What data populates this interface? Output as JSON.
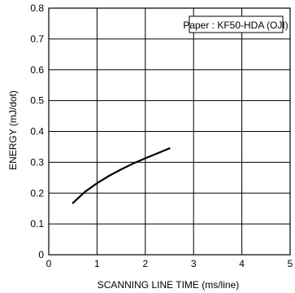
{
  "chart_data": {
    "type": "line",
    "xlabel": "SCANNING  LINE  TIME (ms/line)",
    "ylabel": "ENERGY (mJ/dot)",
    "xlim": [
      0,
      5
    ],
    "ylim": [
      0,
      0.8
    ],
    "xticks": [
      "0",
      "1",
      "2",
      "3",
      "4",
      "5"
    ],
    "yticks": [
      "0",
      "0.1",
      "0.2",
      "0.3",
      "0.4",
      "0.5",
      "0.6",
      "0.7",
      "0.8"
    ],
    "grid": true,
    "annotation": "Paper : KF50-HDA (OJI)",
    "series": [
      {
        "x": [
          0.5,
          0.75,
          1.0,
          1.25,
          1.5,
          1.75,
          2.0,
          2.25,
          2.5
        ],
        "y": [
          0.168,
          0.204,
          0.232,
          0.256,
          0.277,
          0.296,
          0.313,
          0.329,
          0.345
        ]
      }
    ]
  }
}
